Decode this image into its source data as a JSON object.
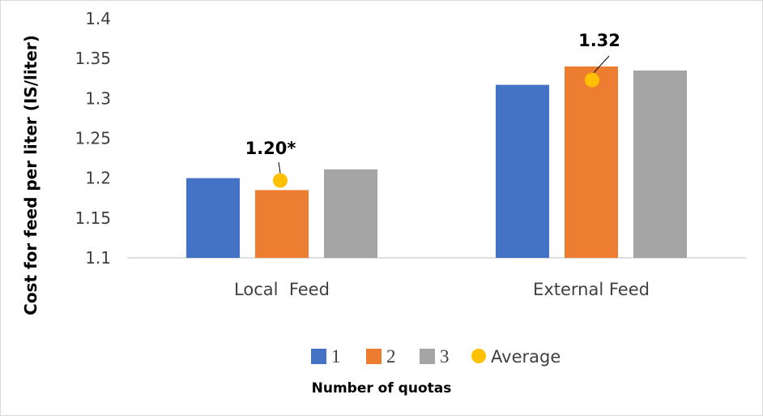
{
  "chart_data": {
    "type": "bar",
    "title": "",
    "categories": [
      "Local  Feed",
      "External Feed"
    ],
    "series": [
      {
        "name": "1",
        "values": [
          1.2,
          1.317
        ],
        "color": "#4472c4"
      },
      {
        "name": "2",
        "values": [
          1.185,
          1.34
        ],
        "color": "#ed7d31"
      },
      {
        "name": "3",
        "values": [
          1.211,
          1.335
        ],
        "color": "#a5a5a5"
      }
    ],
    "average": {
      "name": "Average",
      "values": [
        1.197,
        1.323
      ],
      "color": "#ffc000"
    },
    "annotations": [
      "1.20*",
      "1.32"
    ],
    "ylabel": "Cost for feed per liter (IS/liter)",
    "xlabel": "Number of quotas",
    "ylim": [
      1.1,
      1.4
    ],
    "yticks": [
      "1.1",
      "1.15",
      "1.2",
      "1.25",
      "1.3",
      "1.35",
      "1.4"
    ],
    "grid": false,
    "legend": "bottom"
  }
}
